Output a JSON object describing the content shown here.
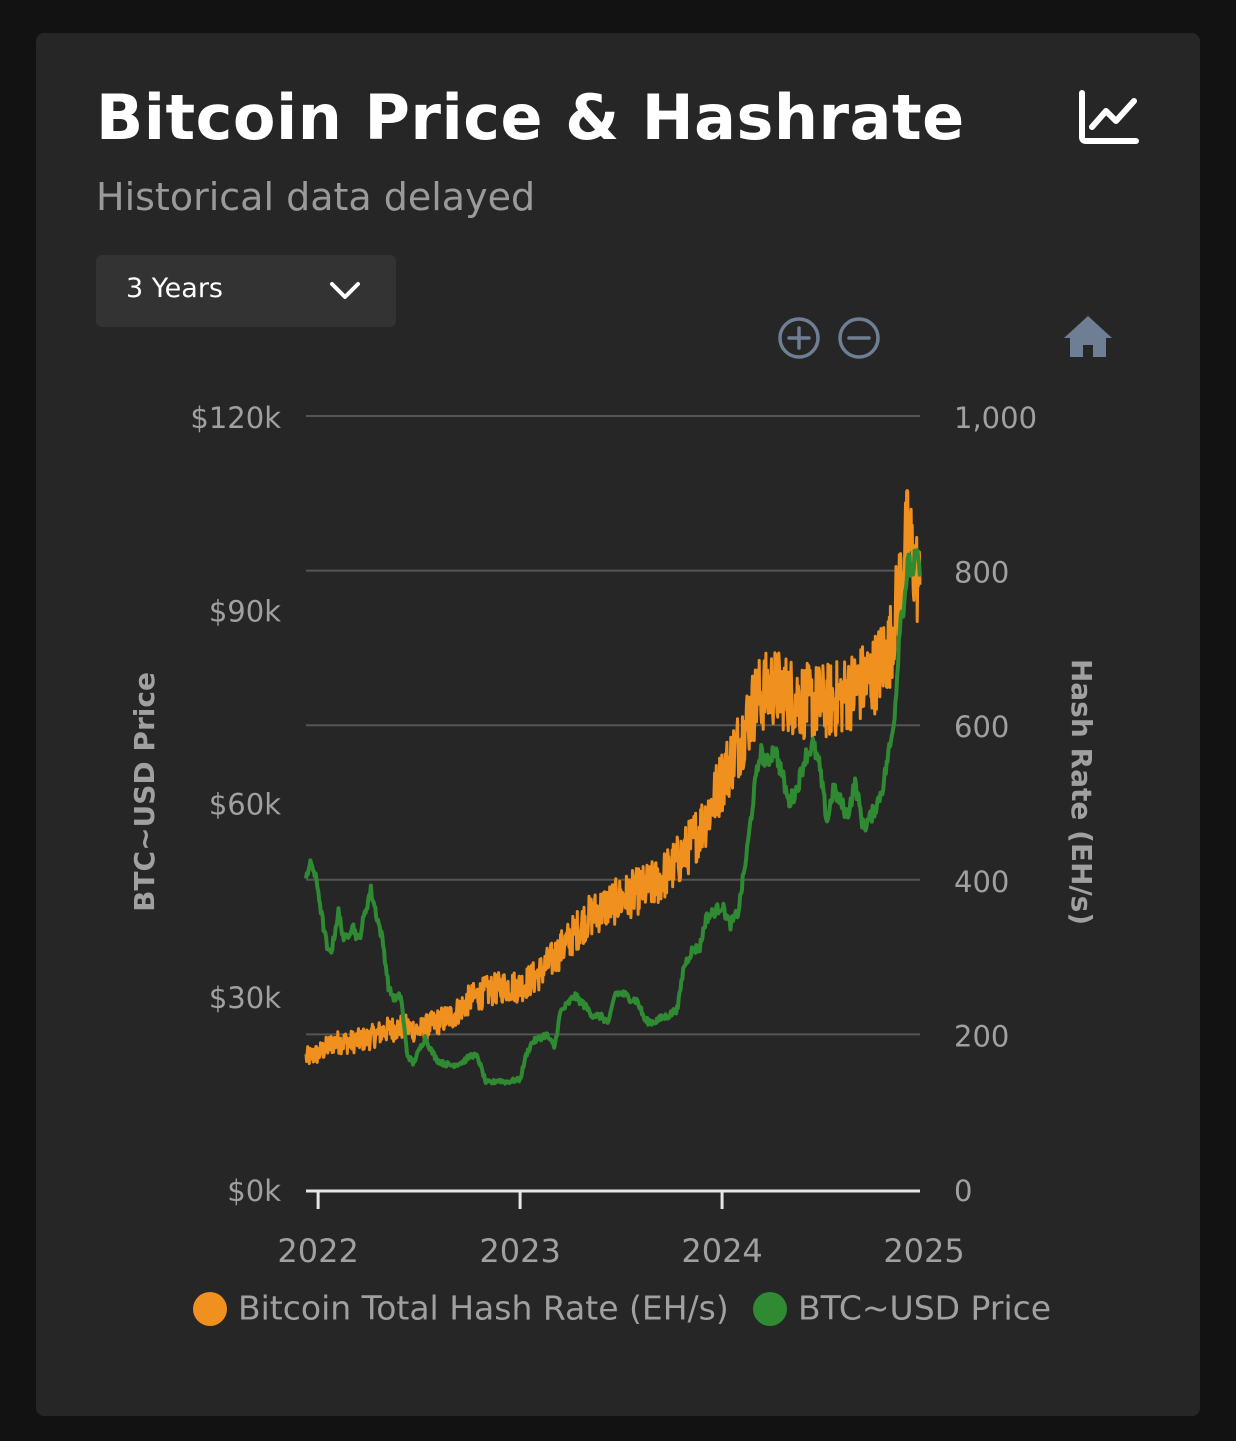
{
  "title": "Bitcoin Price & Hashrate",
  "subtitle": "Historical data delayed",
  "range_selector": {
    "selected": "3 Years"
  },
  "icons": {
    "chart_type": "line-chart-icon",
    "zoom_in": "zoom-in-icon",
    "zoom_out": "zoom-out-icon",
    "reset": "home-icon",
    "dropdown": "chevron-down-icon"
  },
  "colors": {
    "hashrate": "#F0901E",
    "price": "#2F8A32",
    "control": "#6E7F95",
    "grid": "#555555",
    "axis_text": "#A0A0A0"
  },
  "chart_data": {
    "type": "line",
    "title": "Bitcoin Price & Hashrate",
    "xlabel": "",
    "x_ticks": [
      "2022",
      "2023",
      "2024",
      "2025"
    ],
    "x_domain": [
      2021.94,
      2024.98
    ],
    "y_left": {
      "label": "BTC~USD Price",
      "ticks": [
        "$0k",
        "$30k",
        "$60k",
        "$90k",
        "$120k"
      ],
      "lim": [
        0,
        120000
      ]
    },
    "y_right": {
      "label": "Hash Rate (EH/s)",
      "ticks": [
        "0",
        "200",
        "400",
        "600",
        "800",
        "1,000"
      ],
      "lim": [
        0,
        1000
      ]
    },
    "legend_position": "bottom",
    "series": [
      {
        "name": "Bitcoin Total Hash Rate (EH/s)",
        "axis": "right",
        "color": "#F0901E",
        "points": [
          [
            2021.94,
            170
          ],
          [
            2022.0,
            175
          ],
          [
            2022.08,
            190
          ],
          [
            2022.16,
            190
          ],
          [
            2022.25,
            195
          ],
          [
            2022.33,
            205
          ],
          [
            2022.42,
            210
          ],
          [
            2022.5,
            205
          ],
          [
            2022.58,
            215
          ],
          [
            2022.67,
            225
          ],
          [
            2022.75,
            245
          ],
          [
            2022.83,
            255
          ],
          [
            2022.92,
            262
          ],
          [
            2023.0,
            262
          ],
          [
            2023.08,
            275
          ],
          [
            2023.17,
            300
          ],
          [
            2023.25,
            325
          ],
          [
            2023.33,
            350
          ],
          [
            2023.42,
            365
          ],
          [
            2023.5,
            375
          ],
          [
            2023.58,
            385
          ],
          [
            2023.67,
            395
          ],
          [
            2023.75,
            415
          ],
          [
            2023.83,
            440
          ],
          [
            2023.92,
            480
          ],
          [
            2024.0,
            530
          ],
          [
            2024.08,
            575
          ],
          [
            2024.17,
            635
          ],
          [
            2024.25,
            650
          ],
          [
            2024.33,
            640
          ],
          [
            2024.42,
            630
          ],
          [
            2024.5,
            630
          ],
          [
            2024.58,
            635
          ],
          [
            2024.67,
            650
          ],
          [
            2024.75,
            665
          ],
          [
            2024.83,
            700
          ],
          [
            2024.88,
            780
          ],
          [
            2024.92,
            850
          ],
          [
            2024.95,
            810
          ],
          [
            2024.98,
            775
          ]
        ]
      },
      {
        "name": "BTC~USD Price",
        "axis": "left",
        "color": "#2F8A32",
        "points": [
          [
            2021.94,
            49000
          ],
          [
            2021.97,
            50500
          ],
          [
            2022.0,
            46500
          ],
          [
            2022.02,
            42000
          ],
          [
            2022.05,
            36500
          ],
          [
            2022.07,
            37500
          ],
          [
            2022.1,
            43000
          ],
          [
            2022.13,
            38500
          ],
          [
            2022.17,
            41000
          ],
          [
            2022.2,
            38500
          ],
          [
            2022.23,
            42500
          ],
          [
            2022.26,
            46500
          ],
          [
            2022.29,
            42500
          ],
          [
            2022.32,
            38500
          ],
          [
            2022.35,
            31000
          ],
          [
            2022.38,
            29500
          ],
          [
            2022.41,
            30000
          ],
          [
            2022.44,
            21000
          ],
          [
            2022.47,
            19500
          ],
          [
            2022.5,
            21500
          ],
          [
            2022.53,
            23500
          ],
          [
            2022.56,
            21500
          ],
          [
            2022.59,
            20000
          ],
          [
            2022.62,
            19500
          ],
          [
            2022.66,
            19200
          ],
          [
            2022.69,
            19400
          ],
          [
            2022.72,
            19800
          ],
          [
            2022.76,
            20800
          ],
          [
            2022.79,
            20500
          ],
          [
            2022.83,
            16600
          ],
          [
            2022.86,
            16500
          ],
          [
            2022.89,
            16900
          ],
          [
            2022.93,
            16600
          ],
          [
            2022.96,
            16800
          ],
          [
            2023.0,
            17000
          ],
          [
            2023.03,
            20800
          ],
          [
            2023.06,
            22800
          ],
          [
            2023.09,
            23300
          ],
          [
            2023.13,
            24000
          ],
          [
            2023.17,
            22000
          ],
          [
            2023.2,
            27500
          ],
          [
            2023.23,
            28500
          ],
          [
            2023.27,
            30000
          ],
          [
            2023.31,
            28800
          ],
          [
            2023.36,
            27000
          ],
          [
            2023.4,
            26800
          ],
          [
            2023.44,
            25800
          ],
          [
            2023.47,
            30400
          ],
          [
            2023.51,
            30300
          ],
          [
            2023.55,
            29500
          ],
          [
            2023.58,
            29200
          ],
          [
            2023.62,
            26100
          ],
          [
            2023.66,
            25900
          ],
          [
            2023.7,
            26500
          ],
          [
            2023.74,
            27000
          ],
          [
            2023.78,
            28000
          ],
          [
            2023.81,
            34500
          ],
          [
            2023.85,
            37000
          ],
          [
            2023.89,
            37500
          ],
          [
            2023.92,
            42000
          ],
          [
            2023.96,
            43000
          ],
          [
            2024.0,
            44000
          ],
          [
            2024.04,
            41000
          ],
          [
            2024.08,
            43000
          ],
          [
            2024.12,
            51500
          ],
          [
            2024.16,
            62000
          ],
          [
            2024.19,
            68000
          ],
          [
            2024.22,
            66000
          ],
          [
            2024.26,
            68500
          ],
          [
            2024.3,
            64000
          ],
          [
            2024.33,
            60000
          ],
          [
            2024.37,
            62000
          ],
          [
            2024.41,
            67000
          ],
          [
            2024.45,
            69000
          ],
          [
            2024.48,
            66000
          ],
          [
            2024.52,
            57000
          ],
          [
            2024.55,
            62000
          ],
          [
            2024.58,
            60500
          ],
          [
            2024.62,
            58000
          ],
          [
            2024.66,
            63000
          ],
          [
            2024.7,
            56000
          ],
          [
            2024.74,
            58000
          ],
          [
            2024.77,
            60000
          ],
          [
            2024.8,
            63000
          ],
          [
            2024.82,
            67000
          ],
          [
            2024.84,
            70000
          ],
          [
            2024.86,
            76000
          ],
          [
            2024.88,
            88000
          ],
          [
            2024.9,
            91000
          ],
          [
            2024.92,
            97000
          ],
          [
            2024.94,
            96000
          ],
          [
            2024.96,
            98000
          ],
          [
            2024.98,
            96000
          ]
        ]
      }
    ]
  }
}
